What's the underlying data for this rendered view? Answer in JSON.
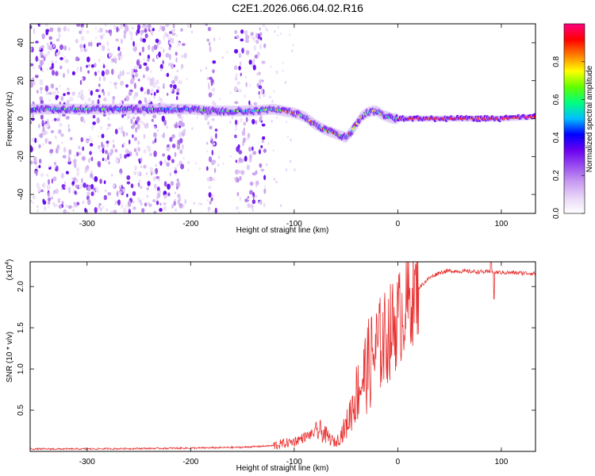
{
  "title": "C2E1.2026.066.04.02.R16",
  "chart_data": [
    {
      "type": "heatmap",
      "name": "spectrogram",
      "xlabel": "Height of straight line (km)",
      "ylabel": "Frequency (Hz)",
      "xlim": [
        -355,
        133
      ],
      "ylim": [
        -50,
        50
      ],
      "xticks": [
        -300,
        -200,
        -100,
        0,
        100
      ],
      "yticks": [
        -40,
        -20,
        0,
        20,
        40
      ],
      "colorbar": {
        "label": "Normalized spectral amplitude",
        "range": [
          0.0,
          1.0
        ],
        "ticks": [
          0.0,
          0.2,
          0.4,
          0.6,
          0.8
        ],
        "colormap": [
          "#ffffff",
          "#e8d6f7",
          "#c79af0",
          "#9a4df0",
          "#6a00f0",
          "#0000ff",
          "#00bfff",
          "#00ff80",
          "#60ff00",
          "#ffff00",
          "#ff8000",
          "#ff0000",
          "#ff0080"
        ]
      },
      "ridge": {
        "x": [
          -355,
          -320,
          -280,
          -250,
          -220,
          -200,
          -180,
          -160,
          -140,
          -120,
          -100,
          -90,
          -80,
          -70,
          -60,
          -55,
          -50,
          -45,
          -40,
          -35,
          -30,
          -25,
          -20,
          -15,
          -10,
          -5,
          0,
          20,
          50,
          80,
          100,
          133
        ],
        "y": [
          5,
          5,
          5,
          5,
          5,
          5,
          4,
          4,
          4,
          5,
          3,
          1,
          -3,
          -6,
          -8,
          -9,
          -10,
          -7,
          -3,
          1,
          3,
          4,
          4,
          2,
          1,
          0,
          0,
          0,
          0,
          0,
          0,
          1
        ]
      },
      "noise_bands": [
        {
          "x_from": -355,
          "x_to": -205
        },
        {
          "x_from": -185,
          "x_to": -175
        },
        {
          "x_from": -157,
          "x_to": -128
        }
      ]
    },
    {
      "type": "line",
      "name": "snr",
      "xlabel": "Height of straight line (km)",
      "ylabel": "SNR (10 * v/v)",
      "multiplier_label": "(x10",
      "multiplier_exp": "4",
      "multiplier_close": ")",
      "xlim": [
        -355,
        133
      ],
      "ylim": [
        0,
        2.3
      ],
      "xticks": [
        -300,
        -200,
        -100,
        0,
        100
      ],
      "yticks": [
        0.5,
        1.0,
        1.5,
        2.0
      ],
      "ytick_labels": [
        "0.5",
        "1.0",
        "1.5",
        "2.0"
      ],
      "color": "#e83030",
      "trend": {
        "x": [
          -355,
          -300,
          -200,
          -150,
          -120,
          -100,
          -85,
          -75,
          -60,
          -50,
          -40,
          -30,
          -20,
          -10,
          0,
          10,
          20,
          30,
          40,
          50,
          100,
          133
        ],
        "y": [
          0.03,
          0.03,
          0.04,
          0.05,
          0.07,
          0.12,
          0.2,
          0.25,
          0.1,
          0.3,
          0.7,
          1.0,
          1.25,
          1.4,
          1.6,
          1.8,
          1.98,
          2.1,
          2.17,
          2.19,
          2.17,
          2.16
        ]
      }
    }
  ]
}
